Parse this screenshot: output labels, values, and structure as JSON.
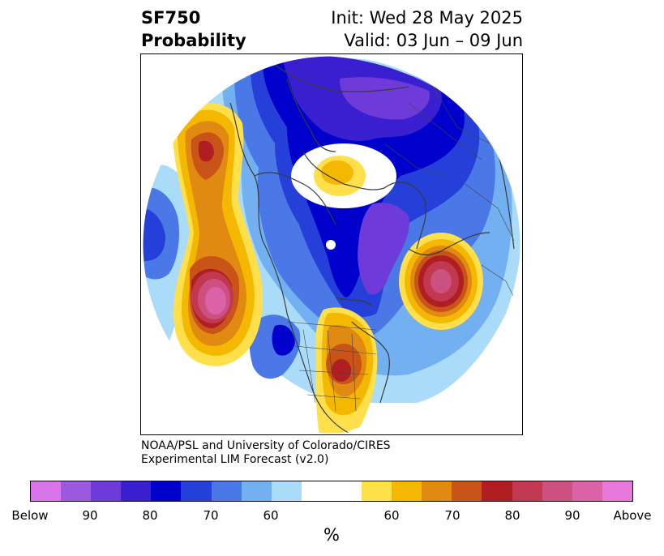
{
  "header": {
    "variable": "SF750",
    "product": "Probability",
    "init_line": "Init: Wed 28 May 2025",
    "valid_line": "Valid: 03 Jun – 09 Jun"
  },
  "credit": {
    "line1": "NOAA/PSL and University of Colorado/CIRES",
    "line2": "Experimental LIM Forecast (v2.0)"
  },
  "colorbar": {
    "tick_labels": [
      "Below",
      "90",
      "80",
      "70",
      "60",
      "60",
      "70",
      "80",
      "90",
      "Above"
    ],
    "unit": "%",
    "colors": {
      "below_extreme": "#d774e8",
      "below_95": "#9b59e0",
      "below_90": "#6e3ad9",
      "below_85": "#3a1fd1",
      "below_80": "#0000cc",
      "below_75": "#2440d8",
      "below_70": "#4a78e6",
      "below_65": "#73b0f2",
      "below_60": "#aadcf9",
      "neutral": "#ffffff",
      "above_60": "#ffe04a",
      "above_65": "#f4b800",
      "above_70": "#e08a12",
      "above_75": "#c85418",
      "above_80": "#b01e22",
      "above_85": "#c23850",
      "above_90": "#cc5080",
      "above_95": "#dc62a8",
      "above_extreme": "#e978dc"
    }
  },
  "map": {
    "projection": "north-polar-stereographic",
    "features": [
      "country-borders",
      "state-borders",
      "coastlines"
    ]
  }
}
